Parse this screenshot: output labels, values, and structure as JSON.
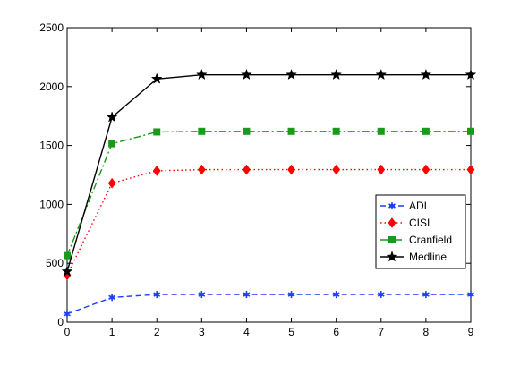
{
  "chart_data": {
    "type": "line",
    "title": "",
    "xlabel": "",
    "ylabel": "",
    "x": [
      0,
      1,
      2,
      3,
      4,
      5,
      6,
      7,
      8,
      9
    ],
    "xlim": [
      0,
      9
    ],
    "ylim": [
      0,
      2500
    ],
    "xticks": [
      "0",
      "1",
      "2",
      "3",
      "4",
      "5",
      "6",
      "7",
      "8",
      "9"
    ],
    "yticks": [
      "0",
      "500",
      "1000",
      "1500",
      "2000",
      "2500"
    ],
    "grid": false,
    "legend_position": "right",
    "series": [
      {
        "name": "ADI",
        "values": [
          70,
          210,
          235,
          235,
          235,
          235,
          235,
          235,
          235,
          235
        ],
        "color": "#1f3fff",
        "line": "dashed",
        "marker": "asterisk"
      },
      {
        "name": "CISI",
        "values": [
          400,
          1180,
          1285,
          1295,
          1295,
          1295,
          1295,
          1295,
          1295,
          1295
        ],
        "color": "#ff0000",
        "line": "dotted",
        "marker": "diamond"
      },
      {
        "name": "Cranfield",
        "values": [
          565,
          1515,
          1615,
          1620,
          1620,
          1620,
          1620,
          1620,
          1620,
          1620
        ],
        "color": "#1a9a1a",
        "line": "dashdot",
        "marker": "square"
      },
      {
        "name": "Medline",
        "values": [
          430,
          1740,
          2065,
          2100,
          2100,
          2100,
          2100,
          2100,
          2100,
          2100
        ],
        "color": "#000000",
        "line": "solid",
        "marker": "star"
      }
    ]
  }
}
